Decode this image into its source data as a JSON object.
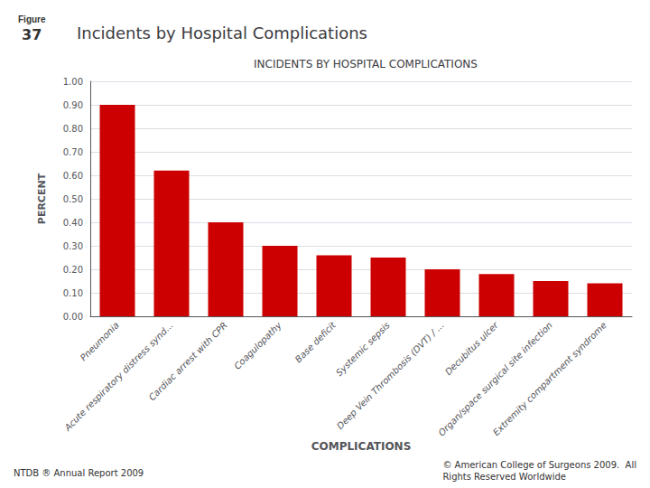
{
  "chart_data": {
    "type": "bar",
    "title": "Incidents by Hospital Complications",
    "subtitle": "INCIDENTS BY HOSPITAL COMPLICATIONS",
    "categories": [
      "Pneumonia",
      "Acute respiratory distress synd...",
      "Cardiac arrest with CPR",
      "Coagulopathy",
      "Base deficit",
      "Systemic sepsis",
      "Deep Vein Thrombosis (DVT) / ...",
      "Decubitus ulcer",
      "Organ/space surgical site infection",
      "Extremity compartment syndrome"
    ],
    "values": [
      0.9,
      0.62,
      0.4,
      0.3,
      0.26,
      0.25,
      0.2,
      0.18,
      0.15,
      0.14
    ],
    "color": "#cc0000",
    "xlabel": "COMPLICATIONS",
    "ylabel": "PERCENT",
    "ylim": [
      0.0,
      1.0
    ],
    "yticks": [
      {
        "value": 0,
        "label": "0.00"
      },
      {
        "value": 0.1,
        "label": "0.10"
      },
      {
        "value": 0.2,
        "label": "0.20"
      },
      {
        "value": 0.3,
        "label": "0.30"
      },
      {
        "value": 0.4,
        "label": "0.40"
      },
      {
        "value": 0.5,
        "label": "0.50"
      },
      {
        "value": 0.6,
        "label": "0.60"
      },
      {
        "value": 0.7,
        "label": "0.70"
      },
      {
        "value": 0.8,
        "label": "0.80"
      },
      {
        "value": 0.9,
        "label": "0.90"
      },
      {
        "value": 1,
        "label": "1.00"
      }
    ],
    "grid": true,
    "annotations": [
      "Figure",
      "37",
      "NTDB ® Annual Report 2009",
      "© American College of Surgeons 2009.  All\nRights Reserved Worldwide"
    ]
  }
}
